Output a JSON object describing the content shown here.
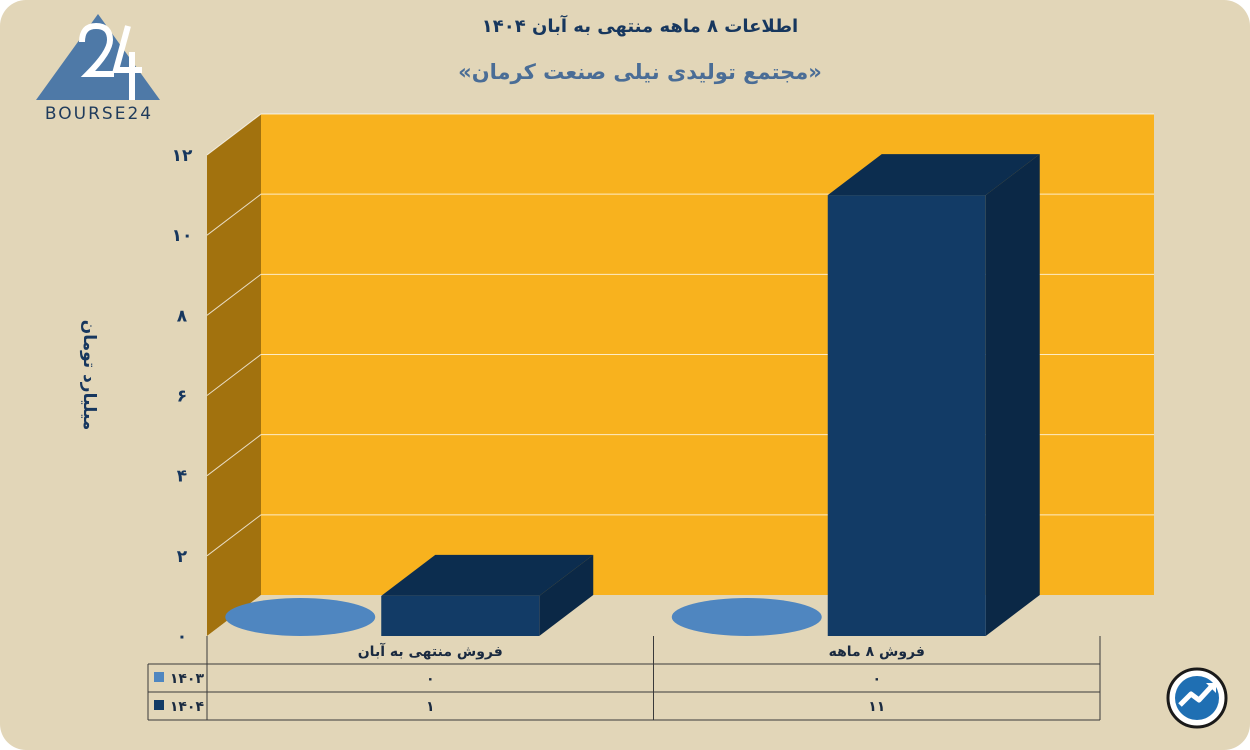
{
  "header": {
    "title": "اطلاعات ۸ ماهه منتهی به آبان ۱۴۰۴",
    "subtitle": "«مجتمع تولیدی نیلی صنعت کرمان»"
  },
  "brand": {
    "logo_text": "BOURSE24",
    "logo_mark": "24"
  },
  "colors": {
    "background": "#e2d6b8",
    "plot_back": "#f8b21e",
    "plot_side": "#a2720e",
    "series_1403": "#4f86c0",
    "series_1404": "#123b66",
    "text": "#17375e"
  },
  "chart_data": {
    "type": "bar",
    "three_d": true,
    "title": "اطلاعات ۸ ماهه منتهی به آبان ۱۴۰۴",
    "subtitle": "«مجتمع تولیدی نیلی صنعت کرمان»",
    "ylabel": "میلیارد تومان",
    "ylim": [
      0,
      12
    ],
    "yticks": [
      0,
      2,
      4,
      6,
      8,
      10,
      12
    ],
    "ytick_labels": [
      "۰",
      "۲",
      "۴",
      "۶",
      "۸",
      "۱۰",
      "۱۲"
    ],
    "categories": [
      "فروش منتهی به  آبان",
      "فروش ۸  ماهه"
    ],
    "series": [
      {
        "name": "۱۴۰۳",
        "values": [
          0,
          0
        ],
        "value_labels": [
          "۰",
          "۰"
        ]
      },
      {
        "name": "۱۴۰۴",
        "values": [
          1,
          11
        ],
        "value_labels": [
          "۱",
          "۱۱"
        ]
      }
    ],
    "grid": true,
    "legend": "data-table-left"
  },
  "icons": {
    "corner": "trend-up-icon"
  }
}
